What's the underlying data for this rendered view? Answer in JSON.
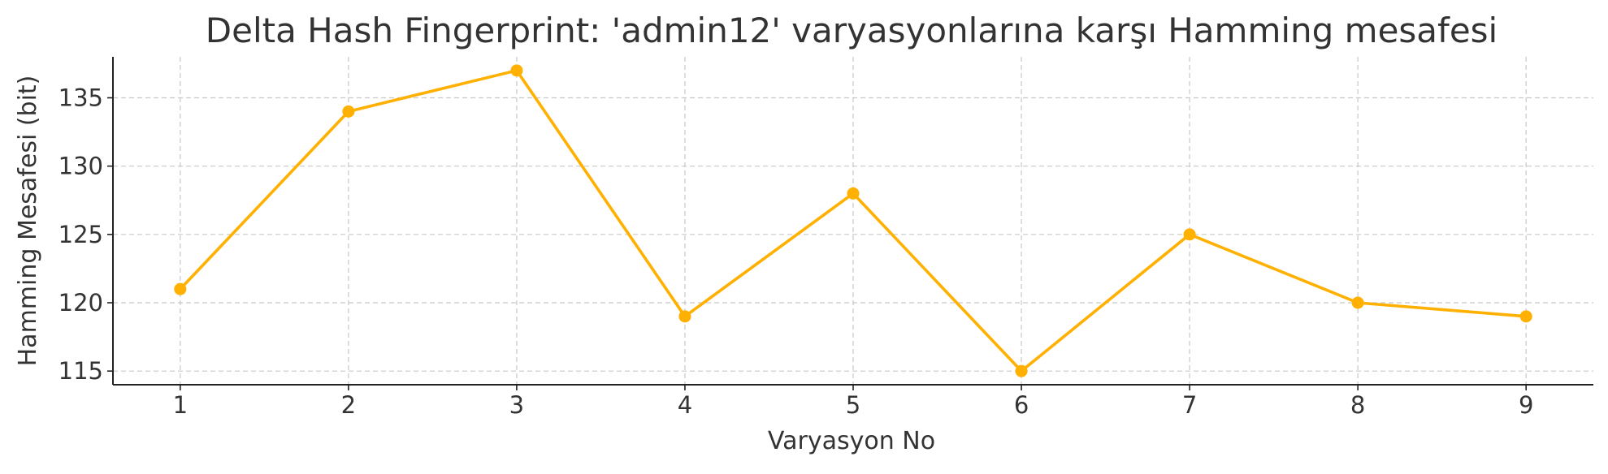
{
  "chart_data": {
    "type": "line",
    "title": "Delta Hash Fingerprint: 'admin12' varyasyonlarına karşı Hamming mesafesi",
    "xlabel": "Varyasyon No",
    "ylabel": "Hamming Mesafesi (bit)",
    "x": [
      1,
      2,
      3,
      4,
      5,
      6,
      7,
      8,
      9
    ],
    "series": [
      {
        "values": [
          121,
          134,
          137,
          119,
          128,
          115,
          125,
          120,
          119
        ],
        "color": "#FFB000"
      }
    ],
    "xlim": [
      0.6,
      9.4
    ],
    "ylim": [
      114,
      138
    ],
    "xticks": [
      1,
      2,
      3,
      4,
      5,
      6,
      7,
      8,
      9
    ],
    "yticks": [
      115,
      120,
      125,
      130,
      135
    ],
    "grid": true,
    "marker": "circle"
  }
}
